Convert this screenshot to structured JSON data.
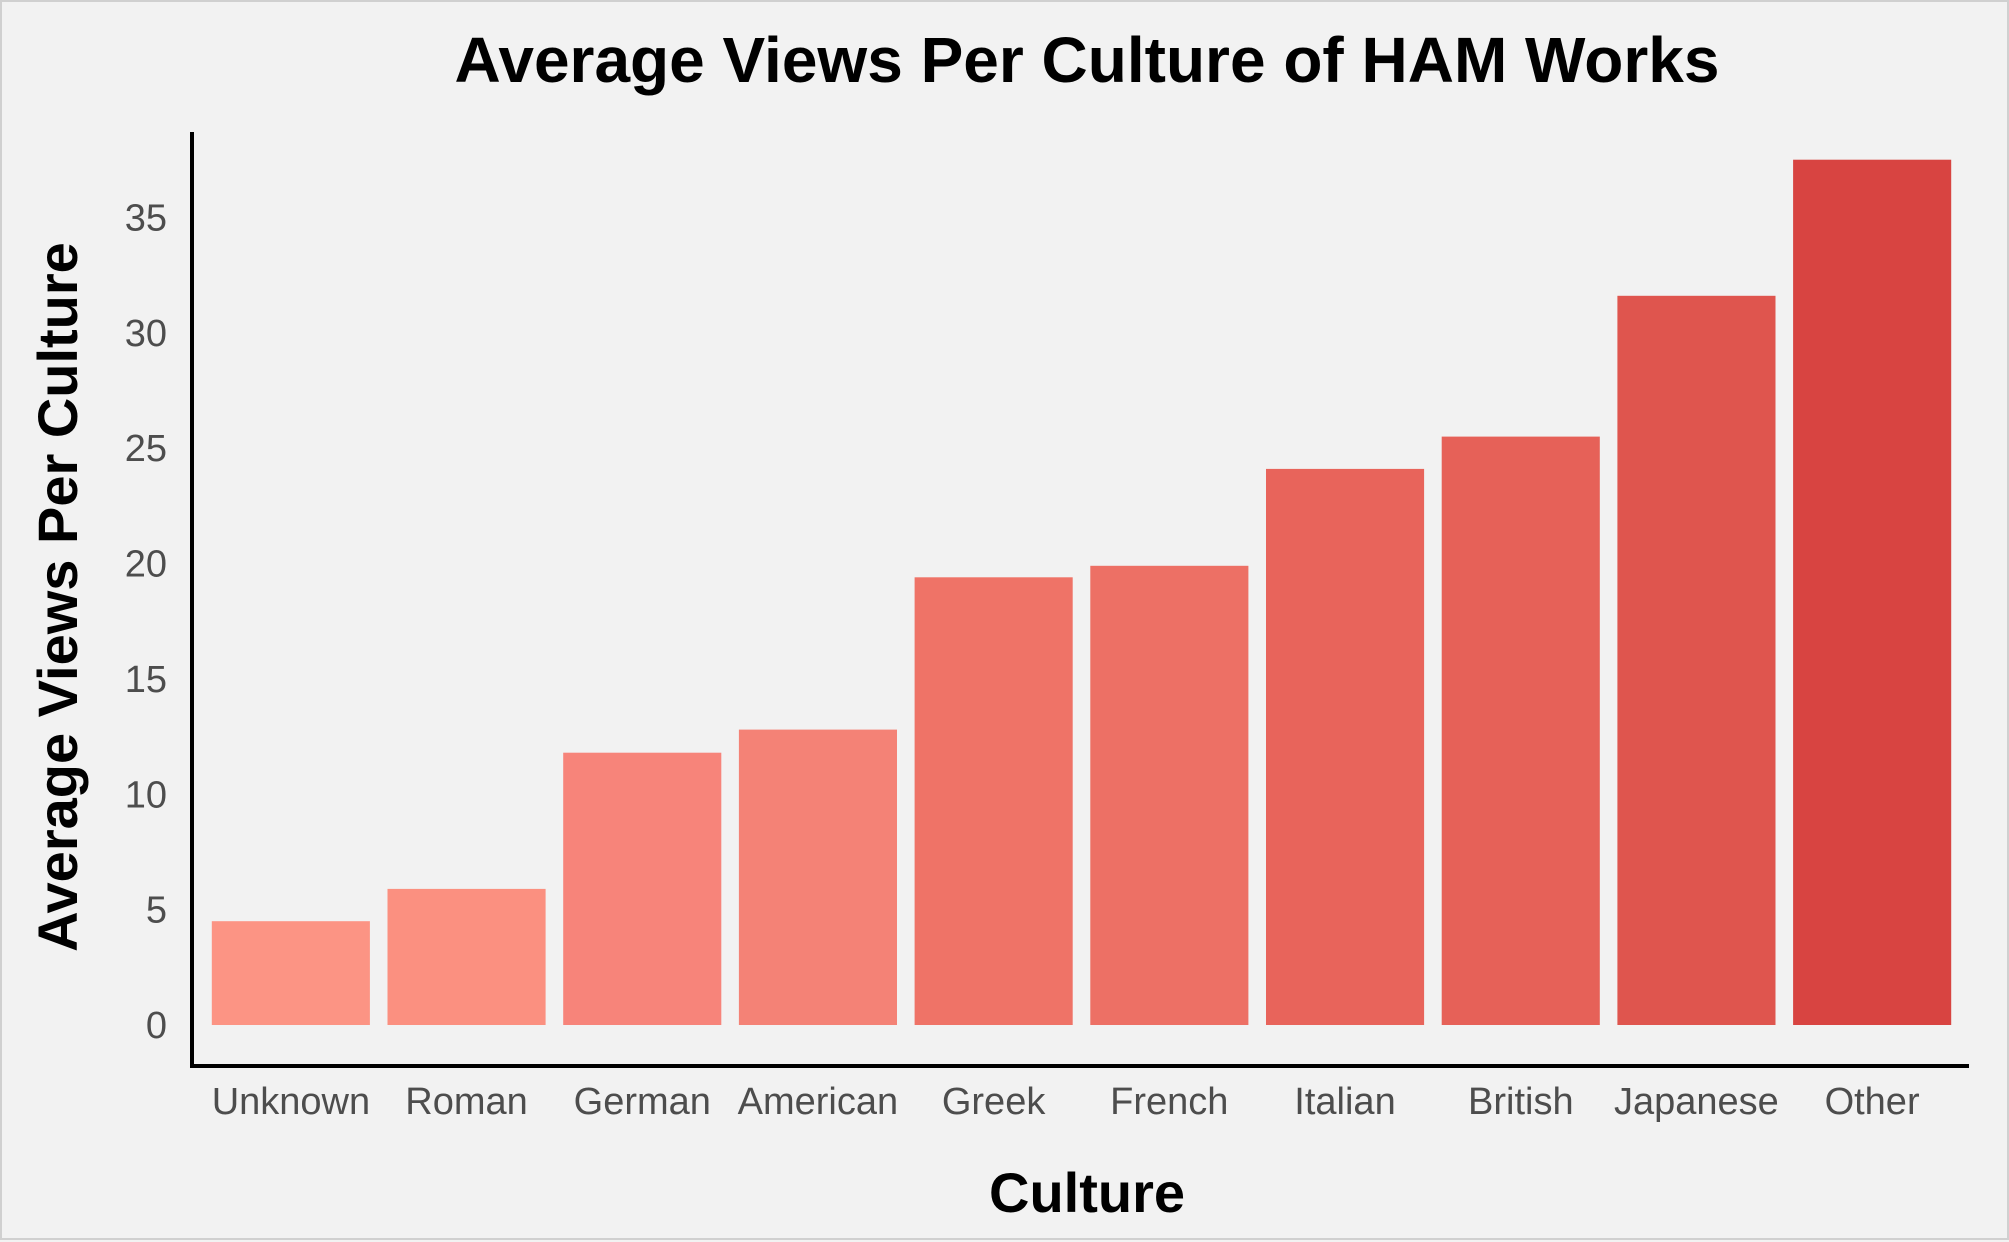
{
  "chart_data": {
    "type": "bar",
    "title": "Average Views Per Culture of HAM Works",
    "xlabel": "Culture",
    "ylabel": "Average Views Per Culture",
    "categories": [
      "Unknown",
      "Roman",
      "German",
      "American",
      "Greek",
      "French",
      "Italian",
      "British",
      "Japanese",
      "Other"
    ],
    "values": [
      4.5,
      5.9,
      11.8,
      12.8,
      19.4,
      19.9,
      24.1,
      25.5,
      31.6,
      37.5
    ],
    "ylim": [
      0,
      38.7
    ],
    "yticks": [
      0,
      5,
      10,
      15,
      20,
      25,
      30,
      35
    ],
    "colors": [
      "#fc9484",
      "#fb9080",
      "#f7847a",
      "#f48276",
      "#ef7367",
      "#ed7065",
      "#e8645b",
      "#e66158",
      "#df554e",
      "#d84441"
    ],
    "grid": false,
    "legend": "none"
  }
}
